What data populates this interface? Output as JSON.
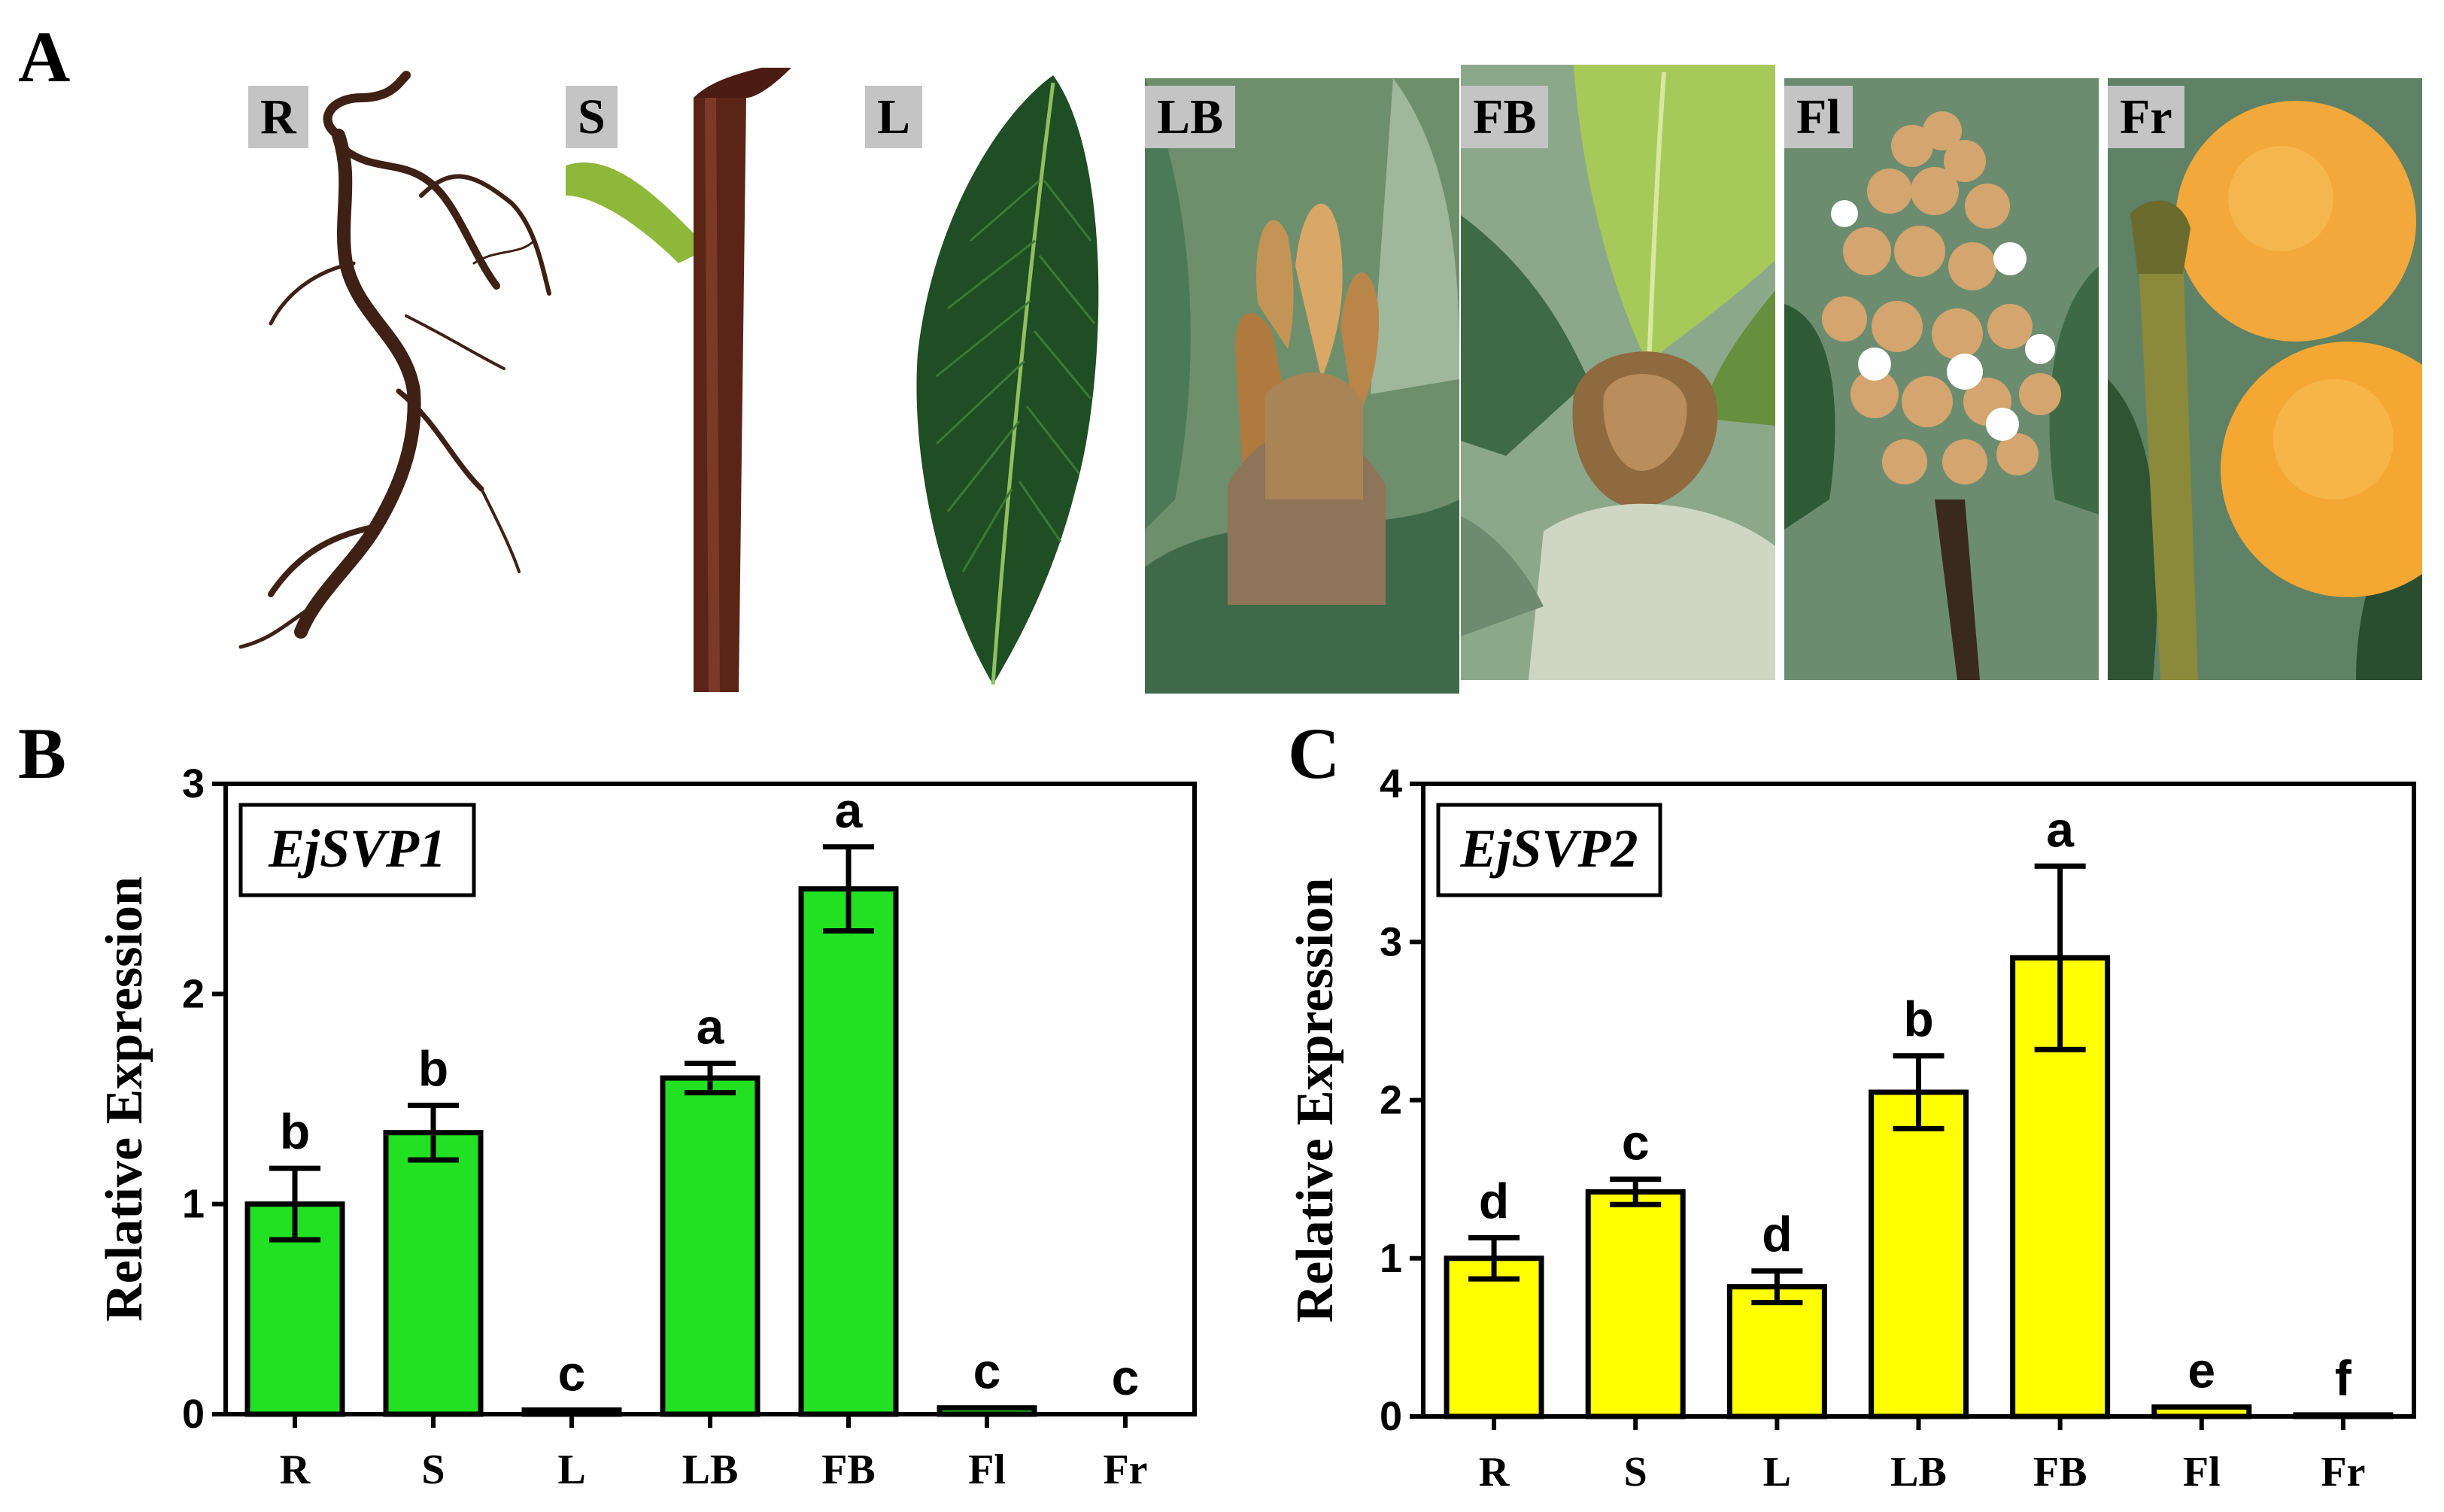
{
  "panel_labels": {
    "a": "A",
    "b": "B",
    "c": "C"
  },
  "photos": [
    {
      "label": "R"
    },
    {
      "label": "S"
    },
    {
      "label": "L"
    },
    {
      "label": "LB"
    },
    {
      "label": "FB"
    },
    {
      "label": "Fl"
    },
    {
      "label": "Fr"
    }
  ],
  "colors": {
    "ejsvp1_bar": "#22e022",
    "ejsvp2_bar": "#ffff00"
  },
  "chart_data": [
    {
      "type": "bar",
      "panel": "B",
      "gene": "EjSVP1",
      "ylabel": "Relative Expression",
      "xlabel": "",
      "ylim": [
        0,
        3
      ],
      "yticks": [
        "0",
        "1",
        "2",
        "3"
      ],
      "categories": [
        "R",
        "S",
        "L",
        "LB",
        "FB",
        "Fl",
        "Fr"
      ],
      "values": [
        1.0,
        1.34,
        0.02,
        1.6,
        2.5,
        0.03,
        0.0
      ],
      "errors": [
        0.17,
        0.13,
        0.0,
        0.07,
        0.2,
        0.0,
        0.0
      ],
      "letters": [
        "b",
        "b",
        "c",
        "a",
        "a",
        "c",
        "c"
      ]
    },
    {
      "type": "bar",
      "panel": "C",
      "gene": "EjSVP2",
      "ylabel": "Relative Expression",
      "xlabel": "",
      "ylim": [
        0,
        4
      ],
      "yticks": [
        "0",
        "1",
        "2",
        "3",
        "4"
      ],
      "categories": [
        "R",
        "S",
        "L",
        "LB",
        "FB",
        "Fl",
        "Fr"
      ],
      "values": [
        1.0,
        1.42,
        0.82,
        2.05,
        2.9,
        0.06,
        0.01
      ],
      "errors": [
        0.13,
        0.08,
        0.1,
        0.23,
        0.58,
        0.0,
        0.0
      ],
      "letters": [
        "d",
        "c",
        "d",
        "b",
        "a",
        "e",
        "f"
      ]
    }
  ]
}
